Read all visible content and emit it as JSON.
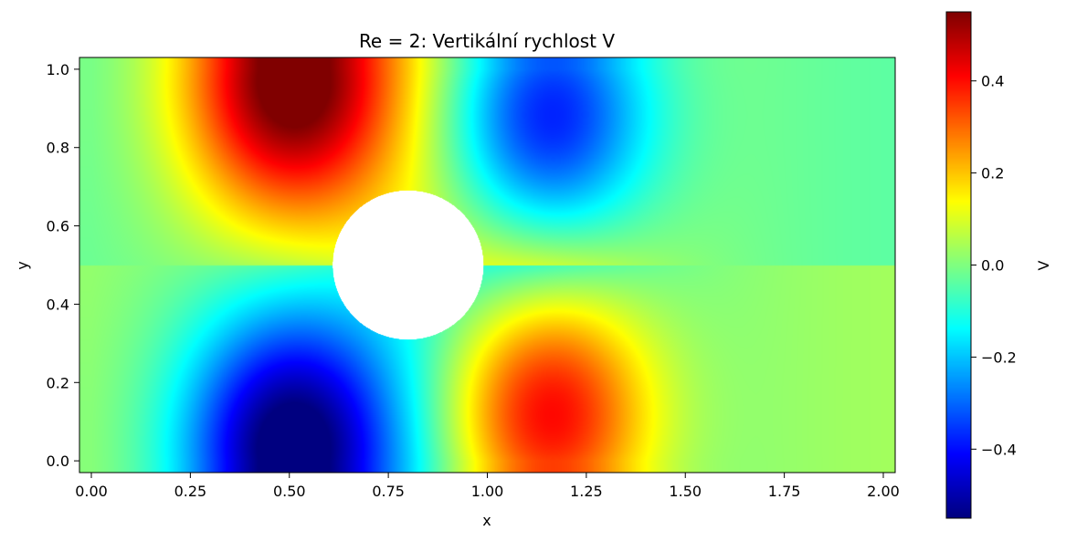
{
  "chart_data": {
    "type": "heatmap",
    "title": "Re = 2: Vertikální rychlost V",
    "xlabel": "x",
    "ylabel": "y",
    "xlim": [
      -0.03,
      2.03
    ],
    "ylim": [
      -0.03,
      1.03
    ],
    "x_ticks": [
      0.0,
      0.25,
      0.5,
      0.75,
      1.0,
      1.25,
      1.5,
      1.75,
      2.0
    ],
    "x_tick_labels": [
      "0.00",
      "0.25",
      "0.50",
      "0.75",
      "1.00",
      "1.25",
      "1.50",
      "1.75",
      "2.00"
    ],
    "y_ticks": [
      0.0,
      0.2,
      0.4,
      0.6,
      0.8,
      1.0
    ],
    "y_tick_labels": [
      "0.0",
      "0.2",
      "0.4",
      "0.6",
      "0.8",
      "1.0"
    ],
    "colormap": "jet",
    "colorbar": {
      "label": "V",
      "range": [
        -0.55,
        0.55
      ],
      "ticks": [
        -0.4,
        -0.2,
        0.0,
        0.2,
        0.4
      ],
      "tick_labels": [
        "−0.4",
        "−0.2",
        "0.0",
        "0.2",
        "0.4"
      ]
    },
    "obstacle": {
      "shape": "circle",
      "center": [
        0.8,
        0.5
      ],
      "radius": 0.19
    },
    "field_features": [
      {
        "x": 0.5,
        "y": 0.97,
        "value": 0.55
      },
      {
        "x": 0.5,
        "y": 0.03,
        "value": -0.55
      },
      {
        "x": 1.15,
        "y": 0.88,
        "value": -0.45
      },
      {
        "x": 1.15,
        "y": 0.12,
        "value": 0.48
      }
    ],
    "grid": false
  }
}
